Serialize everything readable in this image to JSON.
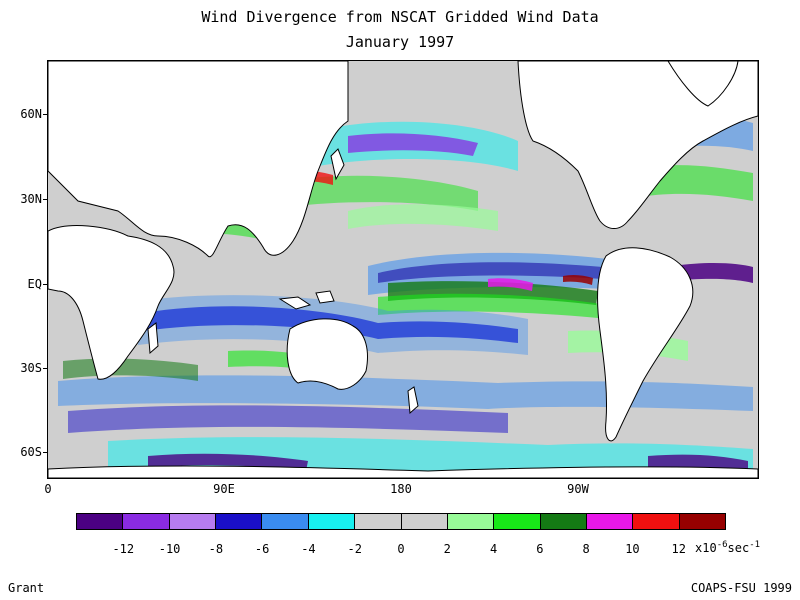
{
  "title": "Wind Divergence from NSCAT Gridded Wind Data",
  "subtitle": "January 1997",
  "lat_labels": [
    "60N",
    "30N",
    "EQ",
    "30S",
    "60S"
  ],
  "lon_labels": [
    "0",
    "90E",
    "180",
    "90W"
  ],
  "colorbar": {
    "colors": [
      "#4b0082",
      "#8a2be2",
      "#b77cf0",
      "#1a0fc8",
      "#3a8cf0",
      "#18f0f0",
      "#cfcfcf",
      "#cfcfcf",
      "#98fb98",
      "#18e818",
      "#147a14",
      "#e818e8",
      "#f01010",
      "#960000"
    ],
    "tick_labels": [
      "-12",
      "-10",
      "-8",
      "-6",
      "-4",
      "-2",
      "0",
      "2",
      "4",
      "6",
      "8",
      "10",
      "12"
    ],
    "units": "x10^-6 sec^-1"
  },
  "footer_left": "Grant",
  "footer_right": "COAPS-FSU 1999"
}
